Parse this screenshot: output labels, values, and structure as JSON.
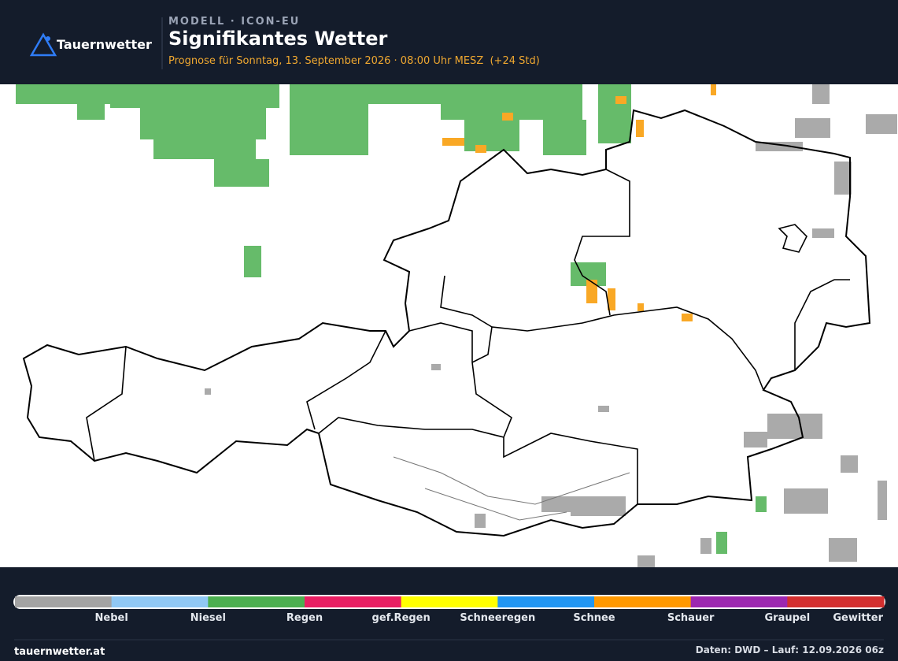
{
  "header": {
    "brand": "Tauernwetter",
    "model": "MODELL · ICON-EU",
    "title": "Signifikantes Wetter",
    "subtitle": "Prognose für Sonntag, 13. September 2026 · 08:00 Uhr MESZ  (+24 Std)"
  },
  "legend": [
    {
      "label": "Nebel",
      "color": "#a3a3a3"
    },
    {
      "label": "Niesel",
      "color": "#90c8f4"
    },
    {
      "label": "Regen",
      "color": "#4caf50"
    },
    {
      "label": "gef.Regen",
      "color": "#e91e63"
    },
    {
      "label": "Schneeregen",
      "color": "#ffff00"
    },
    {
      "label": "Schnee",
      "color": "#2196f3"
    },
    {
      "label": "Schauer",
      "color": "#ff9800"
    },
    {
      "label": "Graupel",
      "color": "#9c27b0"
    },
    {
      "label": "Gewitter",
      "color": "#d32f2f"
    }
  ],
  "footer": {
    "site": "tauernwetter.at",
    "source": "Daten: DWD – Lauf: 12.09.2026 06z"
  }
}
